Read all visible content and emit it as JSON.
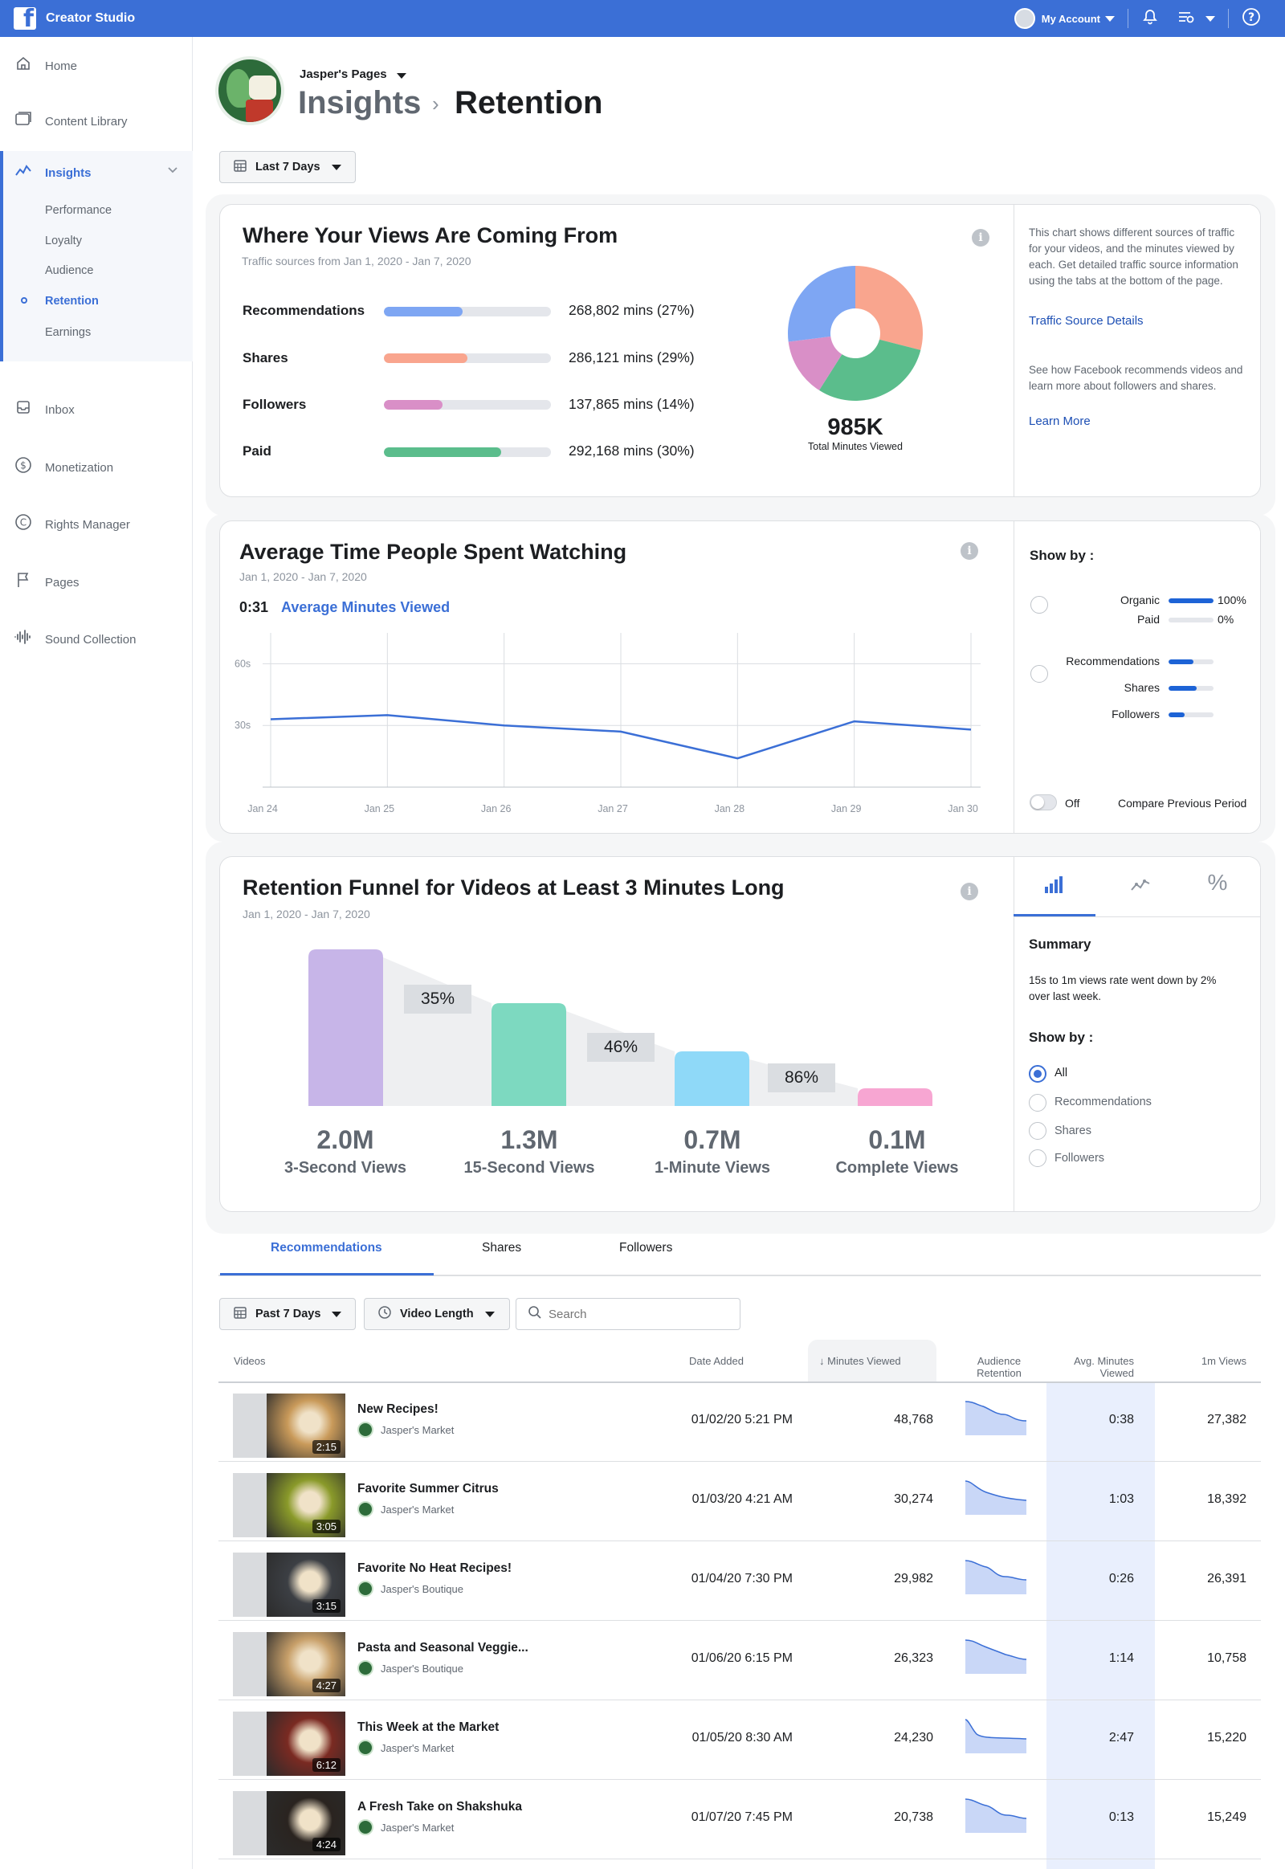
{
  "app": {
    "title": "Creator Studio",
    "account_name": "My Account",
    "icons": [
      "facebook-logo",
      "avatar",
      "bell-icon",
      "settings-icon",
      "help-icon"
    ]
  },
  "sidebar": {
    "items": [
      {
        "label": "Home",
        "icon": "home-icon"
      },
      {
        "label": "Content Library",
        "icon": "library-icon"
      },
      {
        "label": "Inbox",
        "icon": "inbox-icon"
      },
      {
        "label": "Monetization",
        "icon": "dollar-icon"
      },
      {
        "label": "Rights Manager",
        "icon": "copyright-icon"
      },
      {
        "label": "Pages",
        "icon": "flag-icon"
      },
      {
        "label": "Sound Collection",
        "icon": "sound-icon"
      }
    ],
    "insights": {
      "label": "Insights",
      "sub": [
        "Performance",
        "Loyalty",
        "Audience",
        "Retention",
        "Earnings"
      ],
      "active": "Retention"
    }
  },
  "header": {
    "page_name": "Jasper's Pages",
    "crumb_parent": "Insights",
    "crumb_current": "Retention",
    "date_range": "Last 7 Days"
  },
  "traffic": {
    "title": "Where Your Views Are Coming From",
    "subtitle": "Traffic sources from Jan 1, 2020 - Jan 7, 2020",
    "sources": [
      {
        "label": "Recommendations",
        "value": "268,802 mins (27%)",
        "fraction": 0.47,
        "color": "#7ea6f3"
      },
      {
        "label": "Shares",
        "value": "286,121 mins (29%)",
        "fraction": 0.5,
        "color": "#f9a58e"
      },
      {
        "label": "Followers",
        "value": "137,865 mins (14%)",
        "fraction": 0.35,
        "color": "#d98fc7"
      },
      {
        "label": "Paid",
        "value": "292,168 mins (30%)",
        "fraction": 0.7,
        "color": "#5bbd8c"
      }
    ],
    "total": "985K",
    "total_caption": "Total Minutes Viewed",
    "panel_text_1": "This chart shows different sources of traffic for your videos, and the minutes viewed by each. Get detailed traffic source information using the tabs at the bottom of the page.",
    "panel_link_1": "Traffic Source Details",
    "panel_text_2": "See how Facebook recommends videos and learn more about followers and shares.",
    "panel_link_2": "Learn More"
  },
  "avg_time": {
    "title": "Average Time People Spent Watching",
    "subtitle": "Jan 1, 2020 - Jan 7, 2020",
    "value": "0:31",
    "value_label": "Average Minutes Viewed",
    "show_by": "Show by :",
    "groups": [
      [
        {
          "label": "Organic",
          "fraction": 1.0,
          "pct": "100%"
        },
        {
          "label": "Paid",
          "fraction": 0.0,
          "pct": "0%"
        }
      ],
      [
        {
          "label": "Recommendations",
          "fraction": 0.55
        },
        {
          "label": "Shares",
          "fraction": 0.62
        },
        {
          "label": "Followers",
          "fraction": 0.35
        }
      ]
    ],
    "toggle_label": "Off",
    "compare_label": "Compare Previous Period"
  },
  "funnel": {
    "title": "Retention Funnel for Videos at Least 3 Minutes Long",
    "subtitle": "Jan 1, 2020 - Jan 7, 2020",
    "stages": [
      {
        "value": "2.0M",
        "label": "3-Second Views",
        "color": "#c7b5e8"
      },
      {
        "value": "1.3M",
        "label": "15-Second Views",
        "color": "#7dd9c0"
      },
      {
        "value": "0.7M",
        "label": "1-Minute Views",
        "color": "#8fd9f8"
      },
      {
        "value": "0.1M",
        "label": "Complete Views",
        "color": "#f7a6d2"
      }
    ],
    "rates": [
      "35%",
      "46%",
      "86%"
    ],
    "tabs": [
      "bar-chart-icon",
      "line-chart-icon",
      "percent-icon"
    ],
    "summary_title": "Summary",
    "summary_text": "15s to 1m views rate went down by 2% over last week.",
    "show_by": "Show by :",
    "options": [
      "All",
      "Recommendations",
      "Shares",
      "Followers"
    ],
    "selected": "All"
  },
  "table": {
    "tabs": [
      "Recommendations",
      "Shares",
      "Followers"
    ],
    "active_tab": "Recommendations",
    "filter_range": "Past 7 Days",
    "filter_length": "Video Length",
    "search_placeholder": "Search",
    "headers": {
      "videos": "Videos",
      "date": "Date Added",
      "minutes": "Minutes Viewed",
      "retention": "Audience Retention",
      "avg": "Avg. Minutes Viewed",
      "views": "1m Views"
    },
    "rows": [
      {
        "title": "New Recipes!",
        "page": "Jasper's Market",
        "duration": "2:15",
        "date": "01/02/20 5:21 PM",
        "minutes": "48,768",
        "avg": "0:38",
        "views": "27,382",
        "thumb": "#c99a5a"
      },
      {
        "title": "Favorite Summer Citrus",
        "page": "Jasper's Market",
        "duration": "3:05",
        "date": "01/03/20 4:21 AM",
        "minutes": "30,274",
        "avg": "1:03",
        "views": "18,392",
        "thumb": "#8a9a2a"
      },
      {
        "title": "Favorite No Heat Recipes!",
        "page": "Jasper's Boutique",
        "duration": "3:15",
        "date": "01/04/20 7:30 PM",
        "minutes": "29,982",
        "avg": "0:26",
        "views": "26,391",
        "thumb": "#3c3f44"
      },
      {
        "title": "Pasta and Seasonal Veggie...",
        "page": "Jasper's Boutique",
        "duration": "4:27",
        "date": "01/06/20 6:15 PM",
        "minutes": "26,323",
        "avg": "1:14",
        "views": "10,758",
        "thumb": "#c8a06a"
      },
      {
        "title": "This Week at the Market",
        "page": "Jasper's Market",
        "duration": "6:12",
        "date": "01/05/20 8:30 AM",
        "minutes": "24,230",
        "avg": "2:47",
        "views": "15,220",
        "thumb": "#7a2a22"
      },
      {
        "title": "A Fresh Take on Shakshuka",
        "page": "Jasper's Market",
        "duration": "4:24",
        "date": "01/07/20 7:45 PM",
        "minutes": "20,738",
        "avg": "0:13",
        "views": "15,249",
        "thumb": "#2a2420"
      }
    ]
  },
  "chart_data": {
    "type": "line",
    "x": [
      "Jan 24",
      "Jan 25",
      "Jan 26",
      "Jan 27",
      "Jan 28",
      "Jan 29",
      "Jan 30"
    ],
    "series": [
      {
        "values": [
          33,
          35,
          30,
          27,
          14,
          32,
          28
        ]
      }
    ],
    "yticks": [
      "30s",
      "60s"
    ],
    "ylim": [
      0,
      75
    ],
    "grid": true
  }
}
